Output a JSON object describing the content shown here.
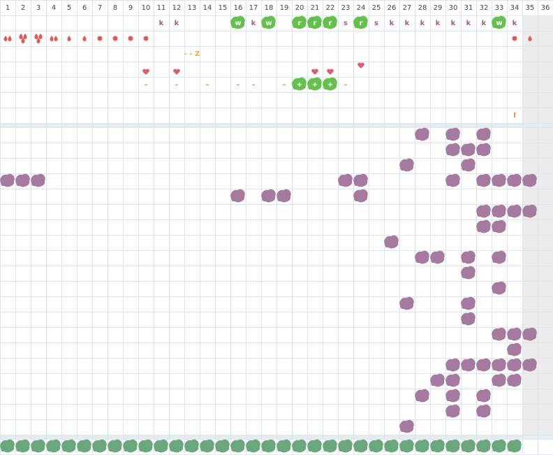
{
  "header": {
    "days": [
      1,
      2,
      3,
      4,
      5,
      6,
      7,
      8,
      9,
      10,
      11,
      12,
      13,
      14,
      15,
      16,
      17,
      18,
      19,
      20,
      21,
      22,
      23,
      24,
      25,
      26,
      27,
      28,
      29,
      30,
      31,
      32,
      33,
      34,
      35,
      36
    ]
  },
  "rows": {
    "activity": [
      null,
      null,
      null,
      null,
      null,
      null,
      null,
      null,
      null,
      null,
      {
        "text": "k"
      },
      {
        "text": "k"
      },
      null,
      null,
      null,
      {
        "text": "w",
        "badge": true
      },
      {
        "text": "k"
      },
      {
        "text": "w",
        "badge": true
      },
      null,
      {
        "text": "r",
        "badge": true
      },
      {
        "text": "r",
        "badge": true
      },
      {
        "text": "r",
        "badge": true
      },
      {
        "text": "s"
      },
      {
        "text": "r",
        "badge": true
      },
      {
        "text": "s"
      },
      {
        "text": "k"
      },
      {
        "text": "k"
      },
      {
        "text": "k"
      },
      {
        "text": "k"
      },
      {
        "text": "k"
      },
      {
        "text": "k"
      },
      {
        "text": "k"
      },
      {
        "text": "w",
        "badge": true
      },
      {
        "text": "k"
      },
      null,
      null
    ],
    "notes": [
      null,
      null,
      null,
      null,
      null,
      null,
      null,
      null,
      null,
      null,
      null,
      null,
      {
        "text": "- - Z"
      },
      null,
      null,
      null,
      null,
      null,
      null,
      null,
      null,
      null,
      null,
      null,
      null,
      null,
      null,
      null,
      null,
      null,
      null,
      null,
      null,
      null,
      null,
      null
    ],
    "marks": [
      null,
      null,
      null,
      null,
      null,
      null,
      null,
      null,
      null,
      {
        "text": "–"
      },
      null,
      {
        "text": "–"
      },
      null,
      {
        "text": "–"
      },
      null,
      {
        "text": "–"
      },
      {
        "text": "–"
      },
      null,
      {
        "text": "–"
      },
      {
        "text": "+",
        "badge": true
      },
      {
        "text": "+",
        "badge": true
      },
      {
        "text": "+",
        "badge": true
      },
      {
        "text": "–"
      },
      null,
      null,
      null,
      null,
      null,
      null,
      null,
      null,
      null,
      null,
      null,
      null,
      null
    ],
    "end": [
      null,
      null,
      null,
      null,
      null,
      null,
      null,
      null,
      null,
      null,
      null,
      null,
      null,
      null,
      null,
      null,
      null,
      null,
      null,
      null,
      null,
      null,
      null,
      null,
      null,
      null,
      null,
      null,
      null,
      null,
      null,
      null,
      null,
      {
        "text": "I"
      },
      null,
      null
    ]
  }
}
